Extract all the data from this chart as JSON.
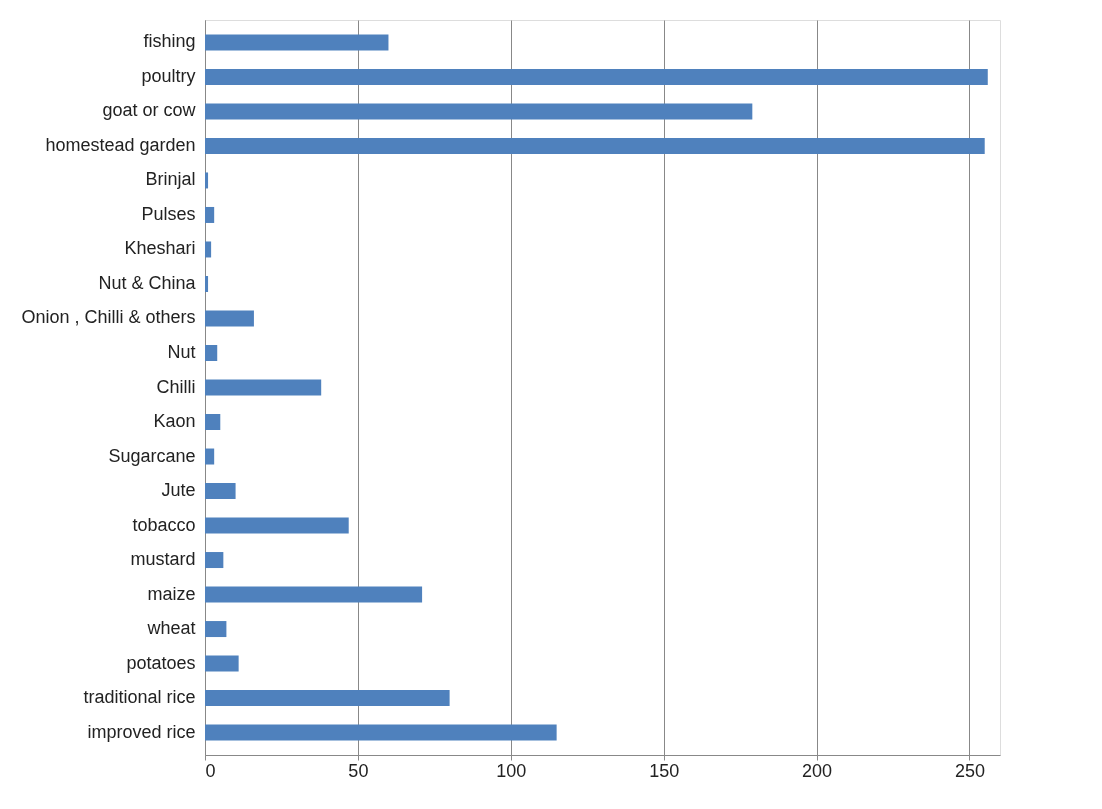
{
  "chart_data": {
    "type": "bar",
    "orientation": "horizontal",
    "categories": [
      "fishing",
      "poultry",
      "goat or cow",
      "homestead garden",
      "Brinjal",
      "Pulses",
      "Kheshari",
      "Nut & China",
      "Onion , Chilli & others",
      "Nut",
      "Chilli",
      "Kaon",
      "Sugarcane",
      "Jute",
      "tobacco",
      "mustard",
      "maize",
      "wheat",
      "potatoes",
      "traditional rice",
      "improved rice"
    ],
    "values": [
      60,
      256,
      179,
      255,
      1,
      3,
      2,
      1,
      16,
      4,
      38,
      5,
      3,
      10,
      47,
      6,
      71,
      7,
      11,
      80,
      115
    ],
    "color": "#4f81bd",
    "xlim": [
      0,
      260
    ],
    "xticks": [
      0,
      50,
      100,
      150,
      200,
      250
    ],
    "grid": "x"
  }
}
